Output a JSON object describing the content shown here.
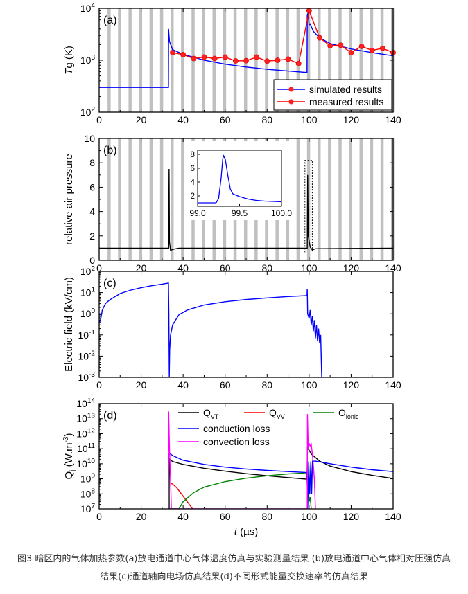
{
  "x_axis": {
    "label_italic": "t",
    "label_rest": " (µs)",
    "ticks": [
      0,
      20,
      40,
      60,
      80,
      100,
      120,
      140
    ],
    "range": [
      0,
      140
    ]
  },
  "caption": {
    "line1": "图3 暗区内的气体加热参数(a)放电通道中心气体温度仿真与实验测量结果 (b)放电通道中心气体相对压强仿真",
    "line2": "结果(c)通道轴向电场仿真结果(d)不同形式能量交换速率的仿真结果"
  },
  "stripe_color": "#c0c0c0",
  "chart_data": [
    {
      "panel": "(a)",
      "type": "line",
      "yscale": "log",
      "ylim": [
        100,
        10000
      ],
      "ylabel_italic": "T",
      "ylabel_rest": "g (K)",
      "yticks": [
        {
          "base": "10",
          "exp": "2",
          "v": 100
        },
        {
          "base": "10",
          "exp": "3",
          "v": 1000
        },
        {
          "base": "10",
          "exp": "4",
          "v": 10000
        }
      ],
      "legend_placement": "bottom-right",
      "series": [
        {
          "name": "simulated results",
          "color": "#0000ff",
          "marker": "none",
          "points": [
            [
              0,
              300
            ],
            [
              33,
              300
            ],
            [
              33.05,
              4000
            ],
            [
              33.5,
              2300
            ],
            [
              35,
              1600
            ],
            [
              40,
              1300
            ],
            [
              50,
              1000
            ],
            [
              60,
              840
            ],
            [
              70,
              740
            ],
            [
              80,
              670
            ],
            [
              90,
              620
            ],
            [
              99,
              580
            ],
            [
              99.1,
              7500
            ],
            [
              99.5,
              8000
            ],
            [
              100,
              4800
            ],
            [
              100.5,
              5000
            ],
            [
              102,
              3600
            ],
            [
              105,
              2700
            ],
            [
              110,
              2100
            ],
            [
              120,
              1650
            ],
            [
              130,
              1400
            ],
            [
              140,
              1220
            ]
          ]
        },
        {
          "name": "measured results",
          "color": "#ff0000",
          "marker": "circle",
          "points": [
            [
              35,
              1400
            ],
            [
              40,
              1280
            ],
            [
              45,
              1080
            ],
            [
              50,
              1150
            ],
            [
              55,
              1080
            ],
            [
              60,
              1150
            ],
            [
              65,
              970
            ],
            [
              70,
              980
            ],
            [
              75,
              1150
            ],
            [
              80,
              960
            ],
            [
              85,
              1000
            ],
            [
              90,
              1050
            ],
            [
              95,
              860
            ],
            [
              100,
              9000
            ],
            [
              105,
              2700
            ],
            [
              110,
              1900
            ],
            [
              115,
              1950
            ],
            [
              120,
              1400
            ],
            [
              125,
              1850
            ],
            [
              130,
              1550
            ],
            [
              135,
              1700
            ],
            [
              140,
              1400
            ]
          ]
        }
      ]
    },
    {
      "panel": "(b)",
      "type": "line",
      "yscale": "linear",
      "ylim": [
        0,
        10
      ],
      "ylabel": "relative air pressure",
      "yticks": [
        0,
        2,
        4,
        6,
        8,
        10
      ],
      "series": [
        {
          "color": "#000000",
          "points": [
            [
              0,
              1
            ],
            [
              33.1,
              1
            ],
            [
              33.3,
              7.5
            ],
            [
              33.5,
              1.5
            ],
            [
              34,
              0.8
            ],
            [
              35,
              0.9
            ],
            [
              38,
              1
            ],
            [
              99.1,
              1
            ],
            [
              99.3,
              7
            ],
            [
              99.6,
              2
            ],
            [
              100.5,
              1.1
            ],
            [
              101.5,
              0.85
            ],
            [
              103,
              0.95
            ],
            [
              140,
              1
            ]
          ]
        }
      ],
      "inset": {
        "xlim": [
          99.0,
          100.0
        ],
        "ylim": [
          0.5,
          8.6
        ],
        "xticks": [
          "99.0",
          "99.5",
          "100.0"
        ],
        "yticks": [
          2,
          4,
          6,
          8
        ],
        "color": "#0000ff",
        "points": [
          [
            99.0,
            1
          ],
          [
            99.22,
            1
          ],
          [
            99.25,
            1.6
          ],
          [
            99.28,
            4.5
          ],
          [
            99.3,
            7.4
          ],
          [
            99.31,
            7.8
          ],
          [
            99.33,
            7.3
          ],
          [
            99.36,
            5
          ],
          [
            99.39,
            3
          ],
          [
            99.42,
            2.3
          ],
          [
            99.5,
            1.9
          ],
          [
            99.6,
            1.55
          ],
          [
            99.7,
            1.35
          ],
          [
            99.8,
            1.25
          ],
          [
            100.0,
            1.15
          ]
        ]
      }
    },
    {
      "panel": "(c)",
      "type": "line",
      "yscale": "log",
      "ylim": [
        0.001,
        100
      ],
      "ylabel": "Electric field (kV/cm)",
      "yticks": [
        {
          "base": "10",
          "exp": "-3",
          "v": 0.001
        },
        {
          "base": "10",
          "exp": "-2",
          "v": 0.01
        },
        {
          "base": "10",
          "exp": "-1",
          "v": 0.1
        },
        {
          "base": "10",
          "exp": "0",
          "v": 1
        },
        {
          "base": "10",
          "exp": "1",
          "v": 10
        },
        {
          "base": "10",
          "exp": "2",
          "v": 100
        }
      ],
      "series": [
        {
          "color": "#0000ff",
          "points": [
            [
              0.2,
              0.4
            ],
            [
              0.8,
              0.6
            ],
            [
              1.5,
              1.5
            ],
            [
              3,
              3
            ],
            [
              5,
              4.5
            ],
            [
              10,
              9
            ],
            [
              15,
              13
            ],
            [
              20,
              17
            ],
            [
              25,
              21
            ],
            [
              30,
              25
            ],
            [
              33,
              28
            ],
            [
              33.2,
              1
            ],
            [
              33.4,
              0.001
            ],
            [
              33.6,
              0.02
            ],
            [
              34,
              0.1
            ],
            [
              35,
              0.3
            ],
            [
              38,
              0.9
            ],
            [
              42,
              1.5
            ],
            [
              50,
              2.6
            ],
            [
              60,
              3.7
            ],
            [
              70,
              4.7
            ],
            [
              80,
              5.6
            ],
            [
              90,
              6.5
            ],
            [
              99,
              7.2
            ],
            [
              99.1,
              15
            ],
            [
              99.3,
              1
            ],
            [
              100,
              0.6
            ],
            [
              100.5,
              1.5
            ],
            [
              101,
              0.3
            ],
            [
              101.5,
              0.8
            ],
            [
              102,
              0.15
            ],
            [
              102.5,
              0.5
            ],
            [
              103,
              0.07
            ],
            [
              103.5,
              0.3
            ],
            [
              104,
              0.05
            ],
            [
              104.5,
              0.2
            ],
            [
              105,
              0.04
            ],
            [
              105.5,
              0.1
            ],
            [
              106,
              0.001
            ]
          ]
        }
      ]
    },
    {
      "panel": "(d)",
      "type": "line",
      "yscale": "log",
      "ylim": [
        10000000.0,
        100000000000000.0
      ],
      "ylabel_main": "Q",
      "ylabel_sub": "j",
      "ylabel_rest": " (W.m",
      "ylabel_sup": "-3",
      "ylabel_end": ")",
      "yticks": [
        {
          "base": "10",
          "exp": "7",
          "v": 10000000.0
        },
        {
          "base": "10",
          "exp": "8",
          "v": 100000000.0
        },
        {
          "base": "10",
          "exp": "9",
          "v": 1000000000.0
        },
        {
          "base": "10",
          "exp": "10",
          "v": 10000000000.0
        },
        {
          "base": "10",
          "exp": "11",
          "v": 100000000000.0
        },
        {
          "base": "10",
          "exp": "12",
          "v": 1000000000000.0
        },
        {
          "base": "10",
          "exp": "13",
          "v": 10000000000000.0
        },
        {
          "base": "10",
          "exp": "14",
          "v": 100000000000000.0
        }
      ],
      "legend_placement": "top",
      "series": [
        {
          "name_main": "Q",
          "name_sub": "VT",
          "color": "#000000",
          "points": [
            [
              33.3,
              10000000.0
            ],
            [
              33.5,
              20000000000.0
            ],
            [
              35,
              14000000000.0
            ],
            [
              40,
              9000000000.0
            ],
            [
              50,
              5000000000.0
            ],
            [
              60,
              3200000000.0
            ],
            [
              70,
              2200000000.0
            ],
            [
              80,
              1600000000.0
            ],
            [
              90,
              1200000000.0
            ],
            [
              99,
              950000000.0
            ],
            [
              99.2,
              110000000000.0
            ],
            [
              100,
              80000000000.0
            ],
            [
              101,
              45000000000.0
            ],
            [
              105,
              15000000000.0
            ],
            [
              110,
              7000000000.0
            ],
            [
              120,
              3000000000.0
            ],
            [
              130,
              1700000000.0
            ],
            [
              140,
              1050000000.0
            ]
          ]
        },
        {
          "name_main": "Q",
          "name_sub": "VV",
          "color": "#ff0000",
          "points": [
            [
              34,
              500000000.0
            ],
            [
              35,
              450000000.0
            ],
            [
              37,
              250000000.0
            ],
            [
              40,
              70000000.0
            ],
            [
              42,
              30000000.0
            ],
            [
              44.5,
              10000000.0
            ]
          ]
        },
        {
          "name_main": "O",
          "name_sub": "ionic",
          "color": "#008000",
          "points": [
            [
              33,
              10000000.0
            ],
            [
              33.1,
              50000000000.0
            ],
            [
              33.3,
              1000000000.0
            ],
            [
              33.5,
              10000000.0
            ],
            [
              38,
              10000000.0
            ],
            [
              40,
              30000000.0
            ],
            [
              45,
              120000000.0
            ],
            [
              50,
              280000000.0
            ],
            [
              60,
              650000000.0
            ],
            [
              70,
              1100000000.0
            ],
            [
              80,
              1600000000.0
            ],
            [
              90,
              2100000000.0
            ],
            [
              99,
              2500000000.0
            ],
            [
              99.3,
              10000000.0
            ],
            [
              99.6,
              500000000.0
            ],
            [
              100,
              30000000.0
            ],
            [
              100.5,
              60000000.0
            ],
            [
              101,
              10000000.0
            ]
          ]
        },
        {
          "name": "conduction loss",
          "color": "#0000ff",
          "points": [
            [
              33.5,
              50000000000.0
            ],
            [
              35,
              35000000000.0
            ],
            [
              40,
              17000000000.0
            ],
            [
              50,
              9000000000.0
            ],
            [
              60,
              6000000000.0
            ],
            [
              70,
              4500000000.0
            ],
            [
              80,
              3600000000.0
            ],
            [
              90,
              3000000000.0
            ],
            [
              99,
              2600000000.0
            ],
            [
              99.3,
              10000000.0
            ],
            [
              99.8,
              14000000000.0
            ],
            [
              100.3,
              100000000.0
            ],
            [
              100.8,
              14000000000.0
            ],
            [
              101.2,
              100000000.0
            ],
            [
              101.6,
              15000000000.0
            ],
            [
              103,
              15000000000.0
            ],
            [
              110,
              10000000000.0
            ],
            [
              120,
              6000000000.0
            ],
            [
              130,
              4000000000.0
            ],
            [
              140,
              3000000000.0
            ]
          ]
        },
        {
          "name": "convection loss",
          "color": "#ff00ff",
          "points": [
            [
              33,
              10000000.0
            ],
            [
              33.1,
              30000000000000.0
            ],
            [
              33.5,
              100000000000.0
            ],
            [
              34,
              1000000000.0
            ],
            [
              34.4,
              10000000.0
            ],
            [
              99.1,
              10000000.0
            ],
            [
              99.2,
              20000000000000.0
            ],
            [
              99.6,
              100000000000.0
            ],
            [
              100,
              220000000000.0
            ],
            [
              100.5,
              150000000000.0
            ],
            [
              101,
              200000000000.0
            ],
            [
              101.5,
              50000000000.0
            ],
            [
              102,
              8000000000.0
            ],
            [
              102.5,
              1000000000.0
            ],
            [
              103,
              10000000.0
            ]
          ]
        }
      ]
    }
  ]
}
